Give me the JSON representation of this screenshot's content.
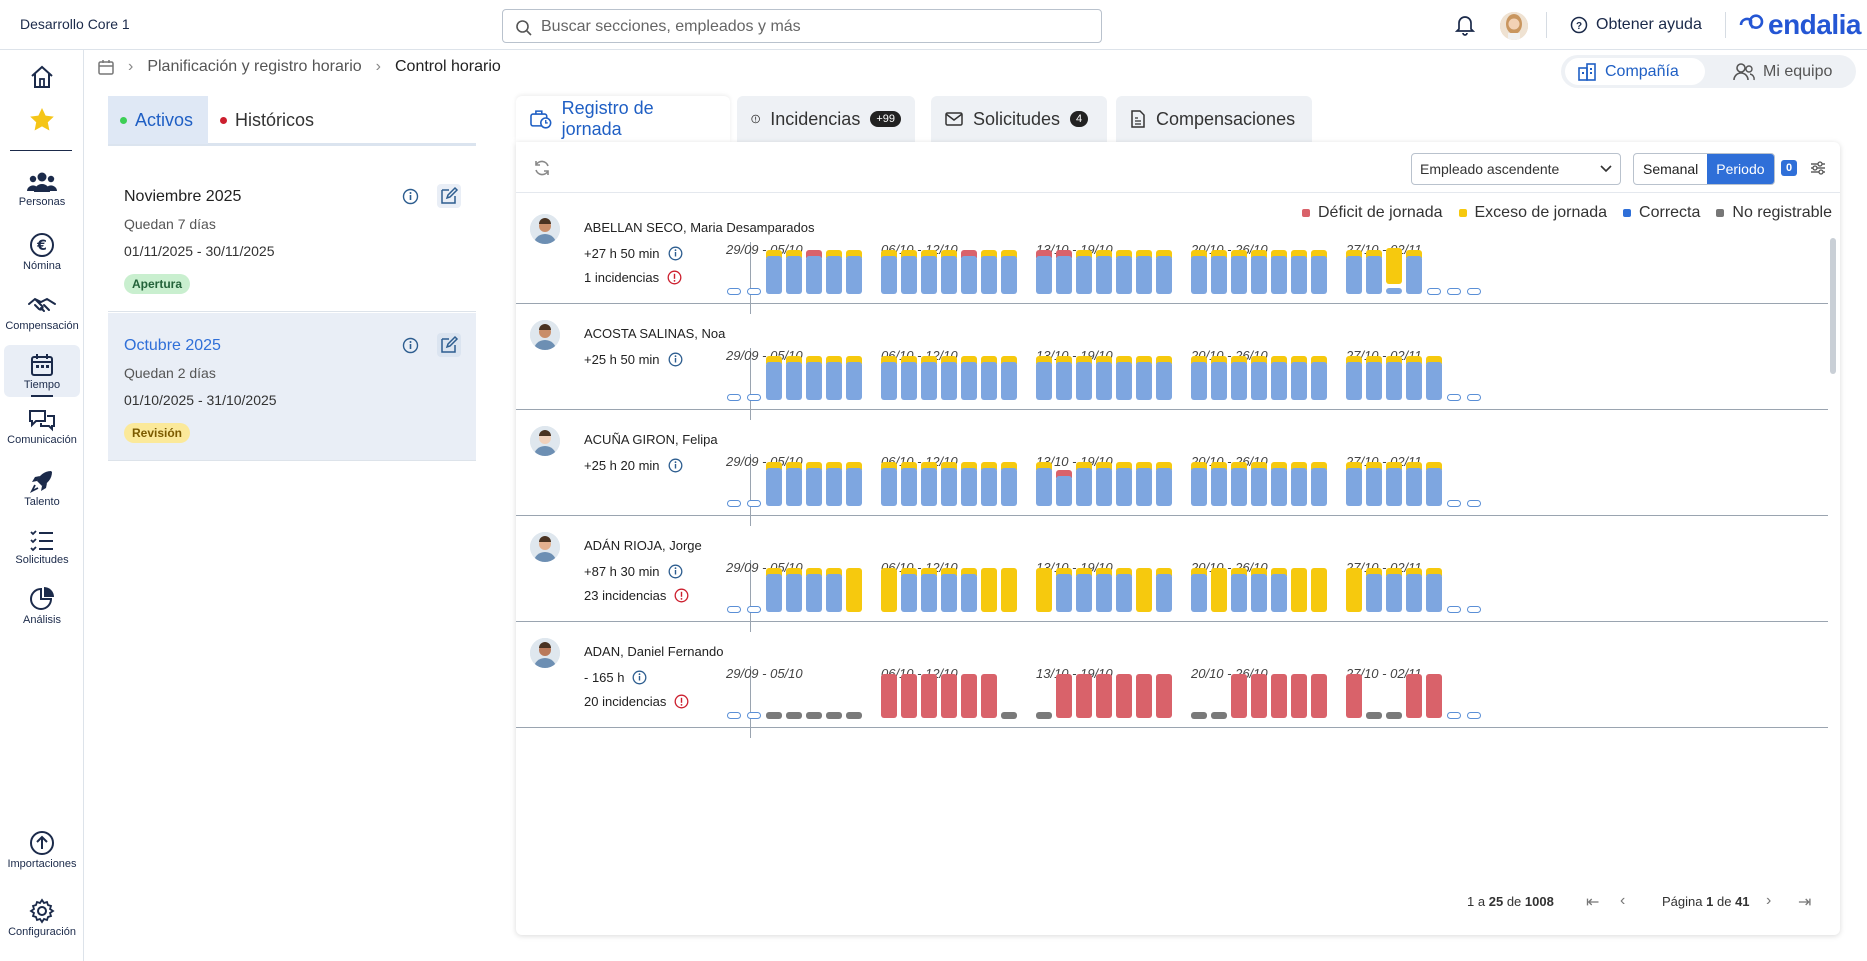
{
  "header": {
    "company": "Desarrollo Core 1",
    "search_placeholder": "Buscar secciones, empleados y más",
    "help": "Obtener ayuda",
    "brand": "endalia"
  },
  "nav": [
    {
      "label": "",
      "icon": "home-icon"
    },
    {
      "label": "",
      "icon": "star-icon"
    },
    {
      "label": "Personas",
      "icon": "people-icon"
    },
    {
      "label": "Nómina",
      "icon": "euro-icon"
    },
    {
      "label": "Compensación",
      "icon": "handshake-icon"
    },
    {
      "label": "Tiempo",
      "icon": "calendar-icon"
    },
    {
      "label": "Comunicación",
      "icon": "chat-icon"
    },
    {
      "label": "Talento",
      "icon": "rocket-icon"
    },
    {
      "label": "Solicitudes",
      "icon": "checklist-icon"
    },
    {
      "label": "Análisis",
      "icon": "pie-icon"
    },
    {
      "label": "Importaciones",
      "icon": "upload-icon"
    },
    {
      "label": "Configuración",
      "icon": "gear-icon"
    }
  ],
  "breadcrumb": {
    "parent": "Planificación y registro horario",
    "current": "Control horario"
  },
  "scope": {
    "company": "Compañía",
    "team": "Mi equipo"
  },
  "left_tabs": {
    "active": "Activos",
    "history": "Históricos"
  },
  "periods": [
    {
      "name": "Noviembre 2025",
      "remaining": "Quedan 7 días",
      "range": "01/11/2025 - 30/11/2025",
      "status": "Apertura"
    },
    {
      "name": "Octubre 2025",
      "remaining": "Quedan 2 días",
      "range": "01/10/2025 - 31/10/2025",
      "status": "Revisión"
    }
  ],
  "tabs": [
    {
      "label": "Registro de jornada"
    },
    {
      "label": "Incidencias",
      "badge": "+99"
    },
    {
      "label": "Solicitudes",
      "badge": "4"
    },
    {
      "label": "Compensaciones"
    }
  ],
  "toolbar": {
    "sort": "Empleado ascendente",
    "weekly": "Semanal",
    "period": "Periodo",
    "filter_count": "0"
  },
  "legend": {
    "deficit": "Déficit de jornada",
    "excess": "Exceso de jornada",
    "correct": "Correcta",
    "not_registrable": "No registrable"
  },
  "colors": {
    "deficit": "#d9626a",
    "excess": "#f6c90e",
    "correct": "#7ea6e0",
    "not_registrable": "#7a7a7a",
    "accent": "#2f6fd8"
  },
  "weeks": [
    "29/09 - 05/10",
    "06/10 - 12/10",
    "13/10 - 19/10",
    "20/10 - 26/10",
    "27/10 - 02/11"
  ],
  "employees": [
    {
      "name": "ABELLAN SECO, Maria Desamparados",
      "hours": "+27 h 50 min",
      "incidents": "1 incidencias"
    },
    {
      "name": "ACOSTA SALINAS, Noa",
      "hours": "+25 h 50 min",
      "incidents": ""
    },
    {
      "name": "ACUÑA GIRON, Felipa",
      "hours": "+25 h 20 min",
      "incidents": ""
    },
    {
      "name": "ADÁN RIOJA, Jorge",
      "hours": "+87 h 30 min",
      "incidents": "23 incidencias"
    },
    {
      "name": "ADAN, Daniel Fernando",
      "hours": "- 165 h",
      "incidents": "20 incidencias"
    }
  ],
  "pager": {
    "from": "1",
    "to": "25",
    "total": "1008",
    "page": "1",
    "pages": "41",
    "a_word": "a",
    "de_word": "de",
    "page_word": "Página"
  }
}
